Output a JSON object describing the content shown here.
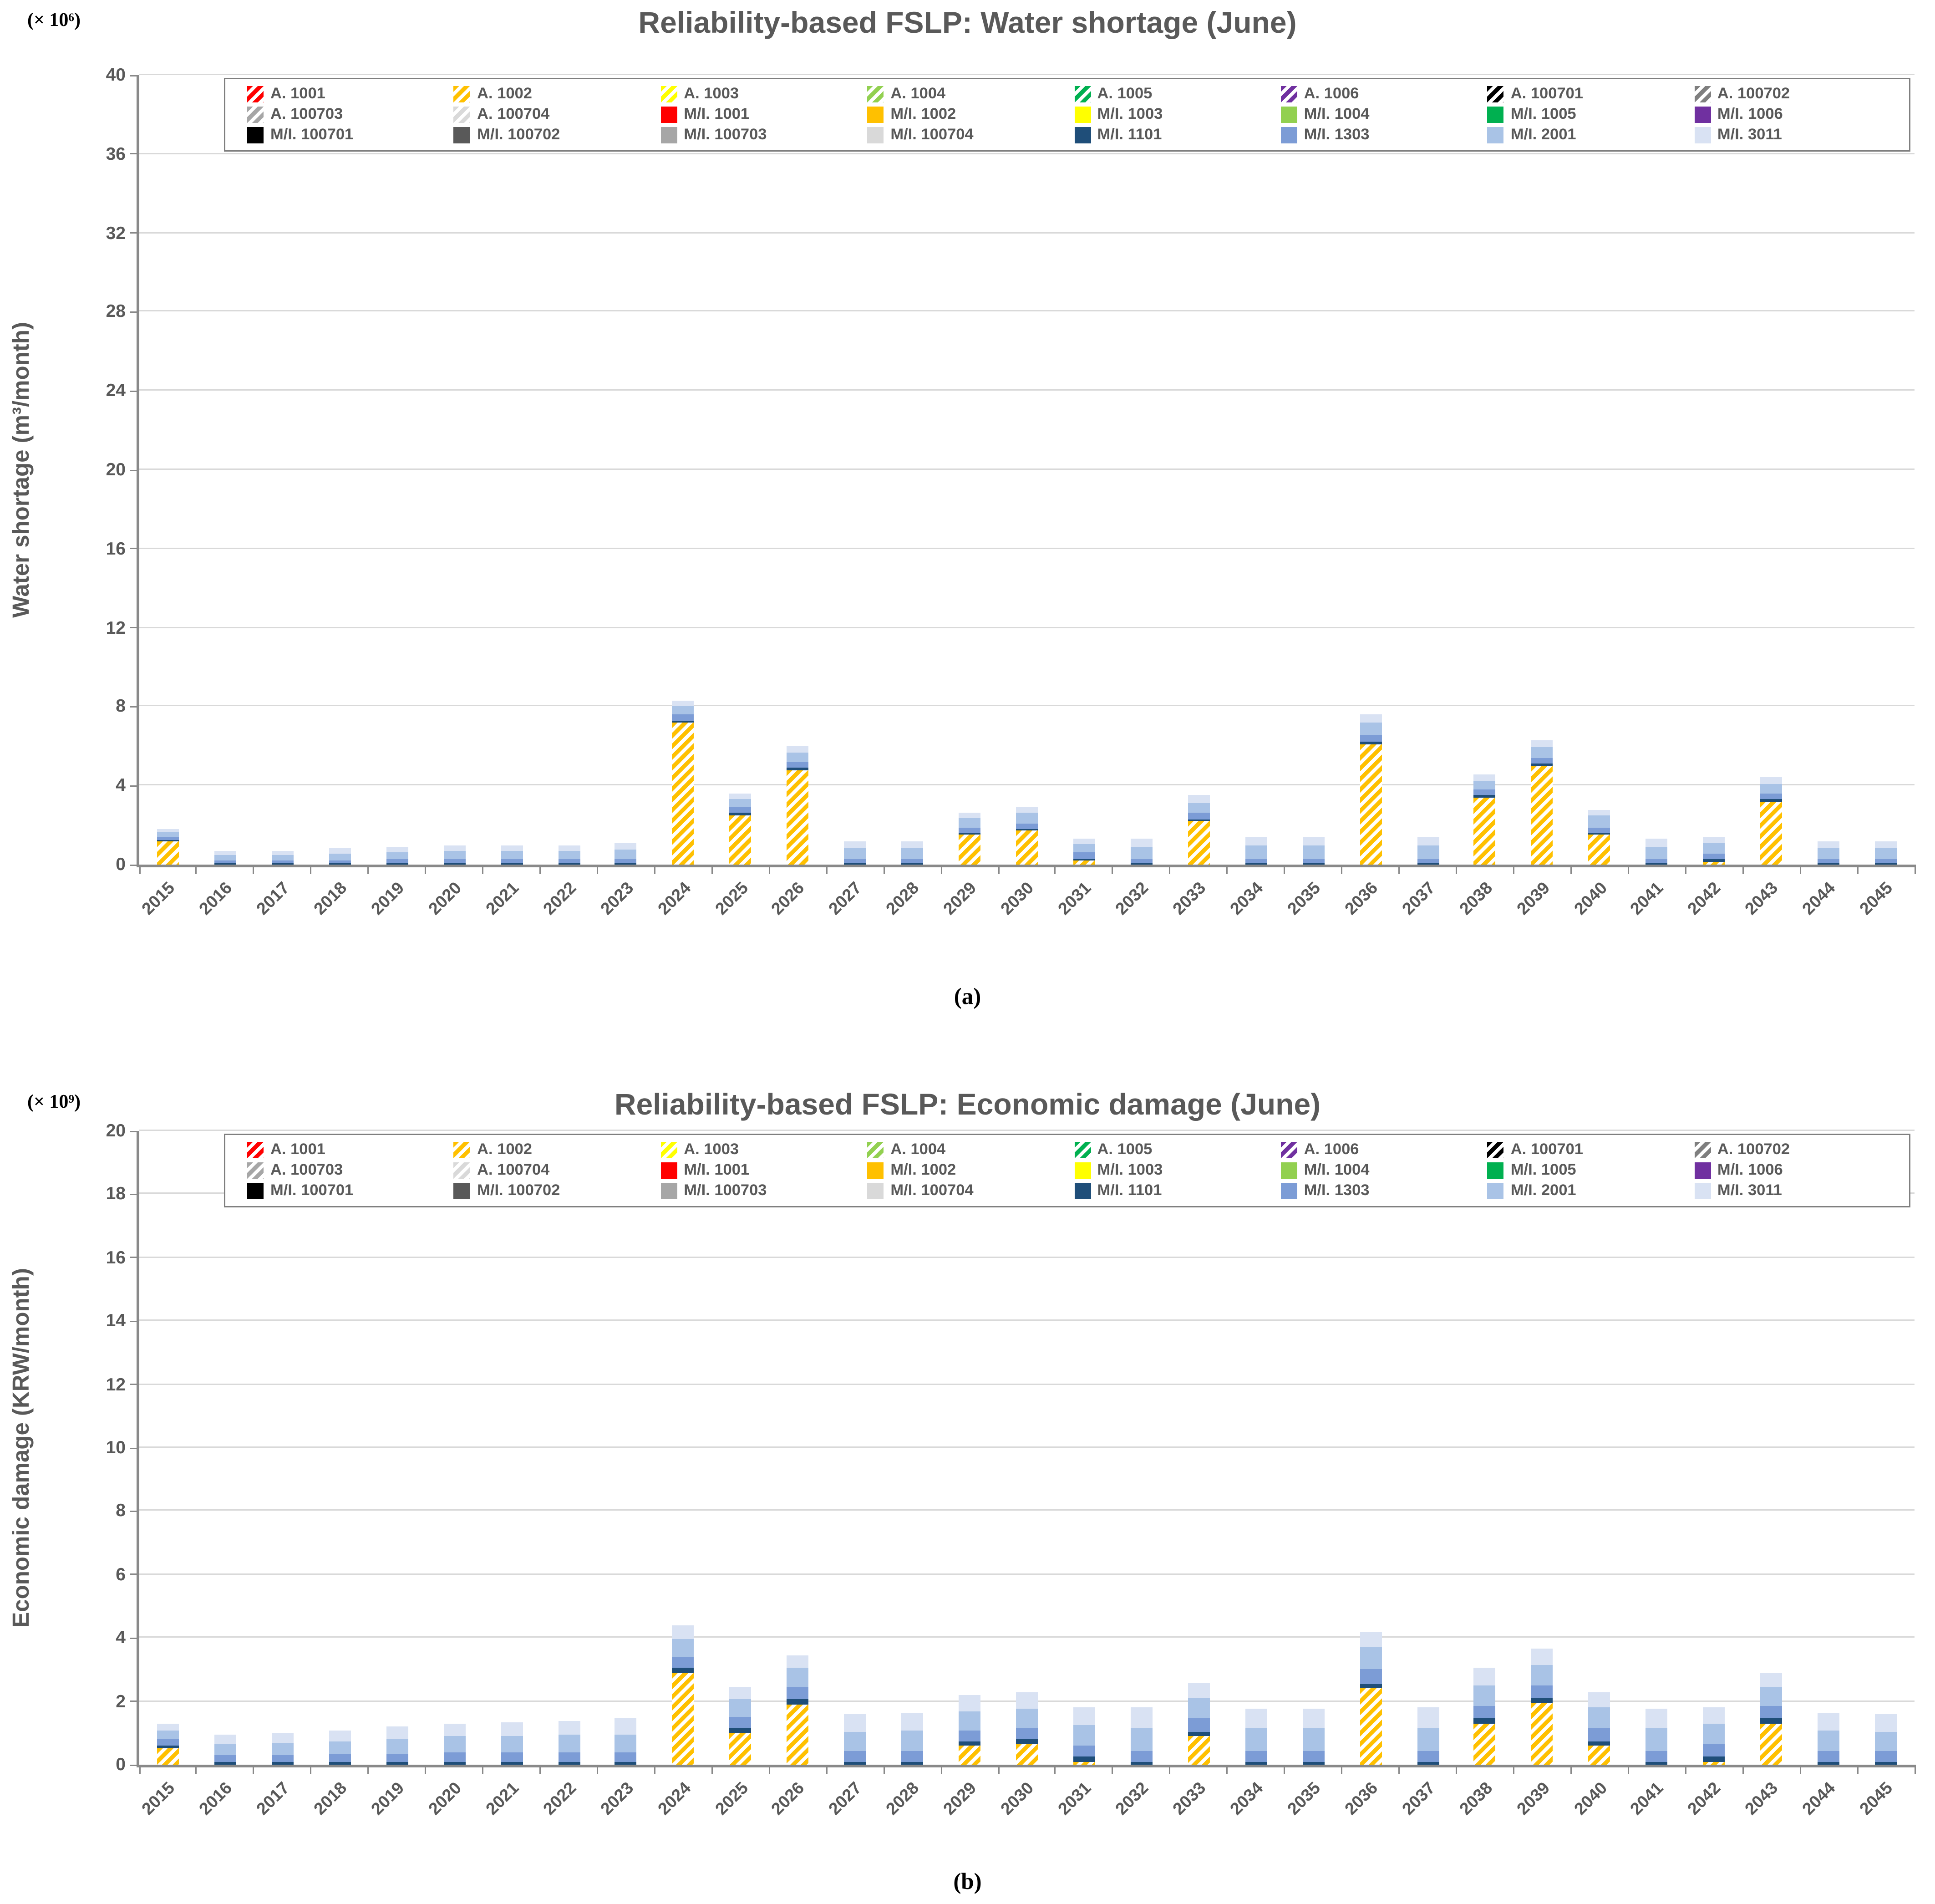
{
  "style": {
    "background": "#FFFFFF",
    "title_color": "#595959",
    "tick_label_color": "#595959",
    "axis_color": "#898989",
    "grid_color": "#D9D9D9",
    "legend_border_color": "#7F7F7F"
  },
  "legend": {
    "entries": [
      {
        "label": "A. 1001",
        "color": "#FF0000",
        "hatched": true
      },
      {
        "label": "A. 1002",
        "color": "#FFC000",
        "hatched": true
      },
      {
        "label": "A. 1003",
        "color": "#FFFF00",
        "hatched": true
      },
      {
        "label": "A. 1004",
        "color": "#92D050",
        "hatched": true
      },
      {
        "label": "A. 1005",
        "color": "#00B050",
        "hatched": true
      },
      {
        "label": "A. 1006",
        "color": "#7030A0",
        "hatched": true
      },
      {
        "label": "A. 100701",
        "color": "#000000",
        "hatched": true
      },
      {
        "label": "A. 100702",
        "color": "#7F7F7F",
        "hatched": true
      },
      {
        "label": "A. 100703",
        "color": "#A6A6A6",
        "hatched": true
      },
      {
        "label": "A. 100704",
        "color": "#D9D9D9",
        "hatched": true
      },
      {
        "label": "M/I. 1001",
        "color": "#FF0000",
        "hatched": false
      },
      {
        "label": "M/I. 1002",
        "color": "#FFC000",
        "hatched": false
      },
      {
        "label": "M/I. 1003",
        "color": "#FFFF00",
        "hatched": false
      },
      {
        "label": "M/I. 1004",
        "color": "#92D050",
        "hatched": false
      },
      {
        "label": "M/I. 1005",
        "color": "#00B050",
        "hatched": false
      },
      {
        "label": "M/I. 1006",
        "color": "#7030A0",
        "hatched": false
      },
      {
        "label": "M/I. 100701",
        "color": "#000000",
        "hatched": false
      },
      {
        "label": "M/I. 100702",
        "color": "#595959",
        "hatched": false
      },
      {
        "label": "M/I. 100703",
        "color": "#A6A6A6",
        "hatched": false
      },
      {
        "label": "M/I. 100704",
        "color": "#D9D9D9",
        "hatched": false
      },
      {
        "label": "M/I. 1101",
        "color": "#1F4E79",
        "hatched": false
      },
      {
        "label": "M/I. 1303",
        "color": "#7C9CD6",
        "hatched": false
      },
      {
        "label": "M/I. 2001",
        "color": "#A9C3E6",
        "hatched": false
      },
      {
        "label": "M/I. 3011",
        "color": "#D9E2F3",
        "hatched": false
      }
    ]
  },
  "chart_data": [
    {
      "id": "a",
      "type": "bar",
      "stacked": true,
      "title": "Reliability-based FSLP: Water shortage (June)",
      "unit_label": "(× 10⁶)",
      "ylabel": "Water shortage (m³/month)",
      "xlabel": "",
      "caption": "(a)",
      "ylim": [
        0,
        40
      ],
      "ytick_step": 4,
      "grid": true,
      "legend_position": "top-inside",
      "categories": [
        "2015",
        "2016",
        "2017",
        "2018",
        "2019",
        "2020",
        "2021",
        "2022",
        "2023",
        "2024",
        "2025",
        "2026",
        "2027",
        "2028",
        "2029",
        "2030",
        "2031",
        "2032",
        "2033",
        "2034",
        "2035",
        "2036",
        "2037",
        "2038",
        "2039",
        "2040",
        "2041",
        "2042",
        "2043",
        "2044",
        "2045"
      ],
      "series": [
        {
          "name": "A. 1002",
          "color": "#FFC000",
          "hatched": true,
          "values": [
            1.2,
            0,
            0,
            0,
            0,
            0,
            0,
            0,
            0,
            7.2,
            2.5,
            4.8,
            0,
            0,
            1.5,
            1.7,
            0.2,
            0,
            2.2,
            0,
            0,
            6.1,
            0,
            3.4,
            5.0,
            1.5,
            0,
            0.15,
            3.2,
            0,
            0
          ]
        },
        {
          "name": "M/I. 1101",
          "color": "#1F4E79",
          "hatched": false,
          "values": [
            0.05,
            0.05,
            0.05,
            0.05,
            0.05,
            0.05,
            0.05,
            0.05,
            0.05,
            0.1,
            0.1,
            0.1,
            0.05,
            0.05,
            0.1,
            0.1,
            0.1,
            0.05,
            0.1,
            0.05,
            0.05,
            0.1,
            0.05,
            0.1,
            0.1,
            0.1,
            0.05,
            0.1,
            0.1,
            0.05,
            0.05
          ]
        },
        {
          "name": "M/I. 1303",
          "color": "#7C9CD6",
          "hatched": false,
          "values": [
            0.15,
            0.15,
            0.15,
            0.15,
            0.2,
            0.2,
            0.2,
            0.2,
            0.2,
            0.3,
            0.3,
            0.3,
            0.25,
            0.25,
            0.3,
            0.3,
            0.3,
            0.25,
            0.3,
            0.25,
            0.25,
            0.4,
            0.25,
            0.3,
            0.3,
            0.3,
            0.25,
            0.3,
            0.3,
            0.25,
            0.25
          ]
        },
        {
          "name": "M/I. 2001",
          "color": "#A9C3E6",
          "hatched": false,
          "values": [
            0.25,
            0.3,
            0.3,
            0.35,
            0.4,
            0.45,
            0.45,
            0.45,
            0.5,
            0.4,
            0.4,
            0.5,
            0.55,
            0.55,
            0.45,
            0.5,
            0.45,
            0.6,
            0.55,
            0.65,
            0.65,
            0.6,
            0.65,
            0.45,
            0.55,
            0.6,
            0.6,
            0.55,
            0.5,
            0.55,
            0.55
          ]
        },
        {
          "name": "M/I. 3011",
          "color": "#D9E2F3",
          "hatched": false,
          "values": [
            0.15,
            0.2,
            0.2,
            0.25,
            0.25,
            0.3,
            0.3,
            0.3,
            0.35,
            0.3,
            0.3,
            0.3,
            0.35,
            0.35,
            0.25,
            0.3,
            0.3,
            0.4,
            0.35,
            0.45,
            0.45,
            0.4,
            0.45,
            0.35,
            0.35,
            0.3,
            0.4,
            0.3,
            0.3,
            0.35,
            0.35
          ]
        }
      ]
    },
    {
      "id": "b",
      "type": "bar",
      "stacked": true,
      "title": "Reliability-based FSLP: Economic damage (June)",
      "unit_label": "(× 10⁹)",
      "ylabel": "Economic damage (KRW/month)",
      "xlabel": "",
      "caption": "(b)",
      "ylim": [
        0,
        20
      ],
      "ytick_step": 2,
      "grid": true,
      "legend_position": "top-inside",
      "categories": [
        "2015",
        "2016",
        "2017",
        "2018",
        "2019",
        "2020",
        "2021",
        "2022",
        "2023",
        "2024",
        "2025",
        "2026",
        "2027",
        "2028",
        "2029",
        "2030",
        "2031",
        "2032",
        "2033",
        "2034",
        "2035",
        "2036",
        "2037",
        "2038",
        "2039",
        "2040",
        "2041",
        "2042",
        "2043",
        "2044",
        "2045"
      ],
      "series": [
        {
          "name": "A. 1002",
          "color": "#FFC000",
          "hatched": true,
          "values": [
            0.5,
            0,
            0,
            0,
            0,
            0,
            0,
            0,
            0,
            2.9,
            1.0,
            1.9,
            0,
            0,
            0.6,
            0.65,
            0.1,
            0,
            0.9,
            0,
            0,
            2.4,
            0,
            1.3,
            1.95,
            0.6,
            0,
            0.1,
            1.3,
            0,
            0
          ]
        },
        {
          "name": "M/I. 1101",
          "color": "#1F4E79",
          "hatched": false,
          "values": [
            0.1,
            0.1,
            0.1,
            0.1,
            0.1,
            0.1,
            0.1,
            0.1,
            0.1,
            0.15,
            0.15,
            0.15,
            0.1,
            0.1,
            0.15,
            0.15,
            0.15,
            0.1,
            0.15,
            0.1,
            0.1,
            0.15,
            0.1,
            0.15,
            0.15,
            0.15,
            0.1,
            0.15,
            0.15,
            0.1,
            0.1
          ]
        },
        {
          "name": "M/I. 1303",
          "color": "#7C9CD6",
          "hatched": false,
          "values": [
            0.2,
            0.2,
            0.2,
            0.25,
            0.25,
            0.3,
            0.3,
            0.3,
            0.3,
            0.35,
            0.35,
            0.4,
            0.35,
            0.35,
            0.35,
            0.35,
            0.35,
            0.35,
            0.4,
            0.35,
            0.35,
            0.45,
            0.35,
            0.4,
            0.4,
            0.4,
            0.35,
            0.4,
            0.4,
            0.35,
            0.35
          ]
        },
        {
          "name": "M/I. 2001",
          "color": "#A9C3E6",
          "hatched": false,
          "values": [
            0.3,
            0.35,
            0.4,
            0.4,
            0.45,
            0.5,
            0.5,
            0.55,
            0.55,
            0.55,
            0.55,
            0.6,
            0.6,
            0.65,
            0.6,
            0.6,
            0.65,
            0.7,
            0.65,
            0.7,
            0.7,
            0.7,
            0.7,
            0.65,
            0.65,
            0.65,
            0.7,
            0.65,
            0.6,
            0.65,
            0.6
          ]
        },
        {
          "name": "M/I. 3011",
          "color": "#D9E2F3",
          "hatched": false,
          "values": [
            0.2,
            0.3,
            0.3,
            0.35,
            0.4,
            0.4,
            0.45,
            0.45,
            0.5,
            0.45,
            0.4,
            0.4,
            0.55,
            0.55,
            0.5,
            0.55,
            0.55,
            0.65,
            0.5,
            0.6,
            0.6,
            0.5,
            0.65,
            0.55,
            0.5,
            0.5,
            0.6,
            0.5,
            0.45,
            0.55,
            0.55
          ]
        }
      ]
    }
  ]
}
